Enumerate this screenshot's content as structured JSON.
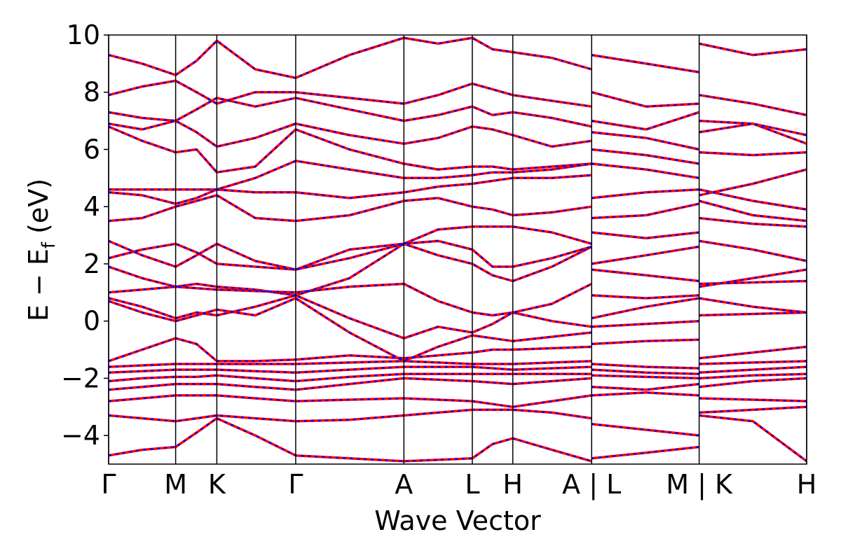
{
  "chart_data": {
    "type": "line",
    "xlabel": "Wave Vector",
    "ylabel": [
      "E − E",
      "f",
      " (eV)"
    ],
    "xlim": [
      0,
      1
    ],
    "ylim": [
      -5,
      10
    ],
    "yticks": [
      {
        "value": -4,
        "label": "−4"
      },
      {
        "value": -2,
        "label": "−2"
      },
      0,
      2,
      4,
      6,
      8,
      10
    ],
    "xticks": [
      {
        "value": 0,
        "label": "Γ"
      },
      {
        "value": 0.096,
        "label": "M"
      },
      {
        "value": 0.155,
        "label": "K"
      },
      {
        "value": 0.268,
        "label": "Γ"
      },
      {
        "value": 0.423,
        "label": "A"
      },
      {
        "value": 0.521,
        "label": "L"
      },
      {
        "value": 0.579,
        "label": "H"
      },
      {
        "value": 0.692,
        "label": "A | L"
      },
      {
        "value": 0.846,
        "label": "M | K"
      },
      {
        "value": 1,
        "label": "H"
      }
    ],
    "colors": [
      "#ff0000",
      "#0000ff"
    ],
    "x": [
      0,
      0.048,
      0.096,
      0.126,
      0.155,
      0.21,
      0.268,
      0.345,
      0.423,
      0.472,
      0.521,
      0.55,
      0.579,
      0.635,
      0.692,
      0.692,
      0.77,
      0.846,
      0.846,
      0.923,
      1
    ],
    "series": [
      {
        "values": [
          -4.7,
          -4.5,
          -4.4,
          -3.9,
          -3.4,
          -4.0,
          -4.7,
          -4.8,
          -4.9,
          -4.85,
          -4.8,
          -4.3,
          -4.1,
          -4.5,
          -4.9,
          -4.8,
          -4.6,
          -4.4,
          -3.3,
          -3.5,
          -4.9
        ]
      },
      {
        "values": [
          -3.3,
          -3.4,
          -3.5,
          -3.4,
          -3.3,
          -3.4,
          -3.5,
          -3.45,
          -3.3,
          -3.2,
          -3.1,
          -3.1,
          -3.1,
          -3.2,
          -3.4,
          -3.6,
          -3.8,
          -4.0,
          -3.2,
          -3.1,
          -3.0
        ]
      },
      {
        "values": [
          -2.8,
          -2.7,
          -2.6,
          -2.6,
          -2.6,
          -2.7,
          -2.8,
          -2.75,
          -2.7,
          -2.75,
          -2.8,
          -2.9,
          -3.0,
          -2.8,
          -2.6,
          -2.6,
          -2.5,
          -2.6,
          -2.7,
          -2.75,
          -2.8
        ]
      },
      {
        "values": [
          -2.4,
          -2.3,
          -2.2,
          -2.2,
          -2.2,
          -2.3,
          -2.4,
          -2.2,
          -2.0,
          -2.05,
          -2.1,
          -2.15,
          -2.2,
          -2.1,
          -2.0,
          -2.3,
          -2.4,
          -2.2,
          -2.3,
          -2.1,
          -2.0
        ]
      },
      {
        "values": [
          -2.1,
          -2.0,
          -1.95,
          -1.95,
          -1.9,
          -2.0,
          -2.1,
          -1.95,
          -1.85,
          -1.85,
          -1.85,
          -1.85,
          -1.85,
          -1.85,
          -1.85,
          -1.9,
          -1.95,
          -2.0,
          -2.0,
          -1.9,
          -1.85
        ]
      },
      {
        "values": [
          -1.8,
          -1.75,
          -1.7,
          -1.7,
          -1.7,
          -1.75,
          -1.8,
          -1.7,
          -1.6,
          -1.6,
          -1.6,
          -1.65,
          -1.7,
          -1.65,
          -1.6,
          -1.7,
          -1.8,
          -1.85,
          -1.8,
          -1.7,
          -1.6
        ]
      },
      {
        "values": [
          -1.6,
          -1.55,
          -1.5,
          -1.5,
          -1.5,
          -1.5,
          -1.5,
          -1.45,
          -1.4,
          -1.45,
          -1.5,
          -1.5,
          -1.5,
          -1.45,
          -1.4,
          -1.5,
          -1.6,
          -1.65,
          -1.5,
          -1.45,
          -1.4
        ]
      },
      {
        "values": [
          -1.4,
          -1.0,
          -0.6,
          -0.8,
          -1.4,
          -1.4,
          -1.35,
          -1.2,
          -1.3,
          -1.2,
          -1.1,
          -1.0,
          -1.0,
          -0.95,
          -0.9,
          -0.8,
          -0.7,
          -0.65,
          -1.3,
          -1.1,
          -0.9
        ]
      },
      {
        "values": [
          0.7,
          0.3,
          0.0,
          0.2,
          0.4,
          0.2,
          0.8,
          -0.4,
          -1.4,
          -0.9,
          -0.5,
          -0.6,
          -0.7,
          -0.55,
          -0.4,
          -0.2,
          -0.1,
          0.0,
          0.2,
          0.25,
          0.3
        ]
      },
      {
        "values": [
          0.8,
          0.5,
          0.1,
          0.3,
          0.2,
          0.5,
          0.9,
          0.1,
          -0.6,
          -0.2,
          -0.4,
          -0.1,
          0.3,
          0.0,
          -0.2,
          0.1,
          0.5,
          0.8,
          0.8,
          0.5,
          0.3
        ]
      },
      {
        "values": [
          1.0,
          1.1,
          1.2,
          1.15,
          1.1,
          1.05,
          1.0,
          1.2,
          1.3,
          0.7,
          0.3,
          0.2,
          0.3,
          0.6,
          1.3,
          0.9,
          0.8,
          0.9,
          1.2,
          1.5,
          1.8
        ]
      },
      {
        "values": [
          1.9,
          1.5,
          1.2,
          1.3,
          1.2,
          1.1,
          0.9,
          1.5,
          2.7,
          2.3,
          2.0,
          1.6,
          1.4,
          1.9,
          2.6,
          1.8,
          1.6,
          1.4,
          1.3,
          1.35,
          1.4
        ]
      },
      {
        "values": [
          2.2,
          2.5,
          2.7,
          2.4,
          2.0,
          1.9,
          1.8,
          2.2,
          2.7,
          2.8,
          2.5,
          1.9,
          1.9,
          2.2,
          2.6,
          2.0,
          2.3,
          2.6,
          2.8,
          2.5,
          2.1
        ]
      },
      {
        "values": [
          2.8,
          2.3,
          1.9,
          2.3,
          2.7,
          2.1,
          1.8,
          2.5,
          2.7,
          3.2,
          3.3,
          3.3,
          3.3,
          3.1,
          2.7,
          3.1,
          2.9,
          3.1,
          3.6,
          3.4,
          3.3
        ]
      },
      {
        "values": [
          3.5,
          3.6,
          4.0,
          4.2,
          4.4,
          3.6,
          3.5,
          3.7,
          4.2,
          4.3,
          4.0,
          3.9,
          3.7,
          3.8,
          4.0,
          3.6,
          3.7,
          4.1,
          4.2,
          3.7,
          3.5
        ]
      },
      {
        "values": [
          4.5,
          4.4,
          4.1,
          4.3,
          4.6,
          4.5,
          4.5,
          4.3,
          4.5,
          4.7,
          4.8,
          4.9,
          5.0,
          5.0,
          5.1,
          4.3,
          4.5,
          4.6,
          4.6,
          4.2,
          3.9
        ]
      },
      {
        "values": [
          4.6,
          4.6,
          4.6,
          4.6,
          4.6,
          5.0,
          5.6,
          5.3,
          5.0,
          5.0,
          5.1,
          5.2,
          5.2,
          5.3,
          5.5,
          5.5,
          5.3,
          5.0,
          4.4,
          4.8,
          5.3
        ]
      },
      {
        "values": [
          6.8,
          6.3,
          5.9,
          6.0,
          5.2,
          5.4,
          6.7,
          6.0,
          5.5,
          5.3,
          5.4,
          5.4,
          5.3,
          5.4,
          5.5,
          6.0,
          5.8,
          5.5,
          5.9,
          5.8,
          5.9
        ]
      },
      {
        "values": [
          6.9,
          6.7,
          7.0,
          6.6,
          6.1,
          6.4,
          6.9,
          6.5,
          6.2,
          6.4,
          6.8,
          6.7,
          6.5,
          6.1,
          6.3,
          6.6,
          6.4,
          6.0,
          6.6,
          6.9,
          6.2
        ]
      },
      {
        "values": [
          7.3,
          7.1,
          7.0,
          7.4,
          7.8,
          7.5,
          7.8,
          7.4,
          7.0,
          7.2,
          7.5,
          7.2,
          7.3,
          7.1,
          6.8,
          7.0,
          6.7,
          7.3,
          7.0,
          6.9,
          6.5
        ]
      },
      {
        "values": [
          7.9,
          8.2,
          8.4,
          8.0,
          7.6,
          8.0,
          8.0,
          7.8,
          7.6,
          7.9,
          8.3,
          8.1,
          7.9,
          7.7,
          7.5,
          8.0,
          7.5,
          7.6,
          7.9,
          7.6,
          7.2
        ]
      },
      {
        "values": [
          9.3,
          9.0,
          8.6,
          9.1,
          9.8,
          8.8,
          8.5,
          9.3,
          9.9,
          9.7,
          9.9,
          9.5,
          9.4,
          9.2,
          8.8,
          9.3,
          9.0,
          8.7,
          9.7,
          9.3,
          9.5
        ]
      }
    ]
  }
}
